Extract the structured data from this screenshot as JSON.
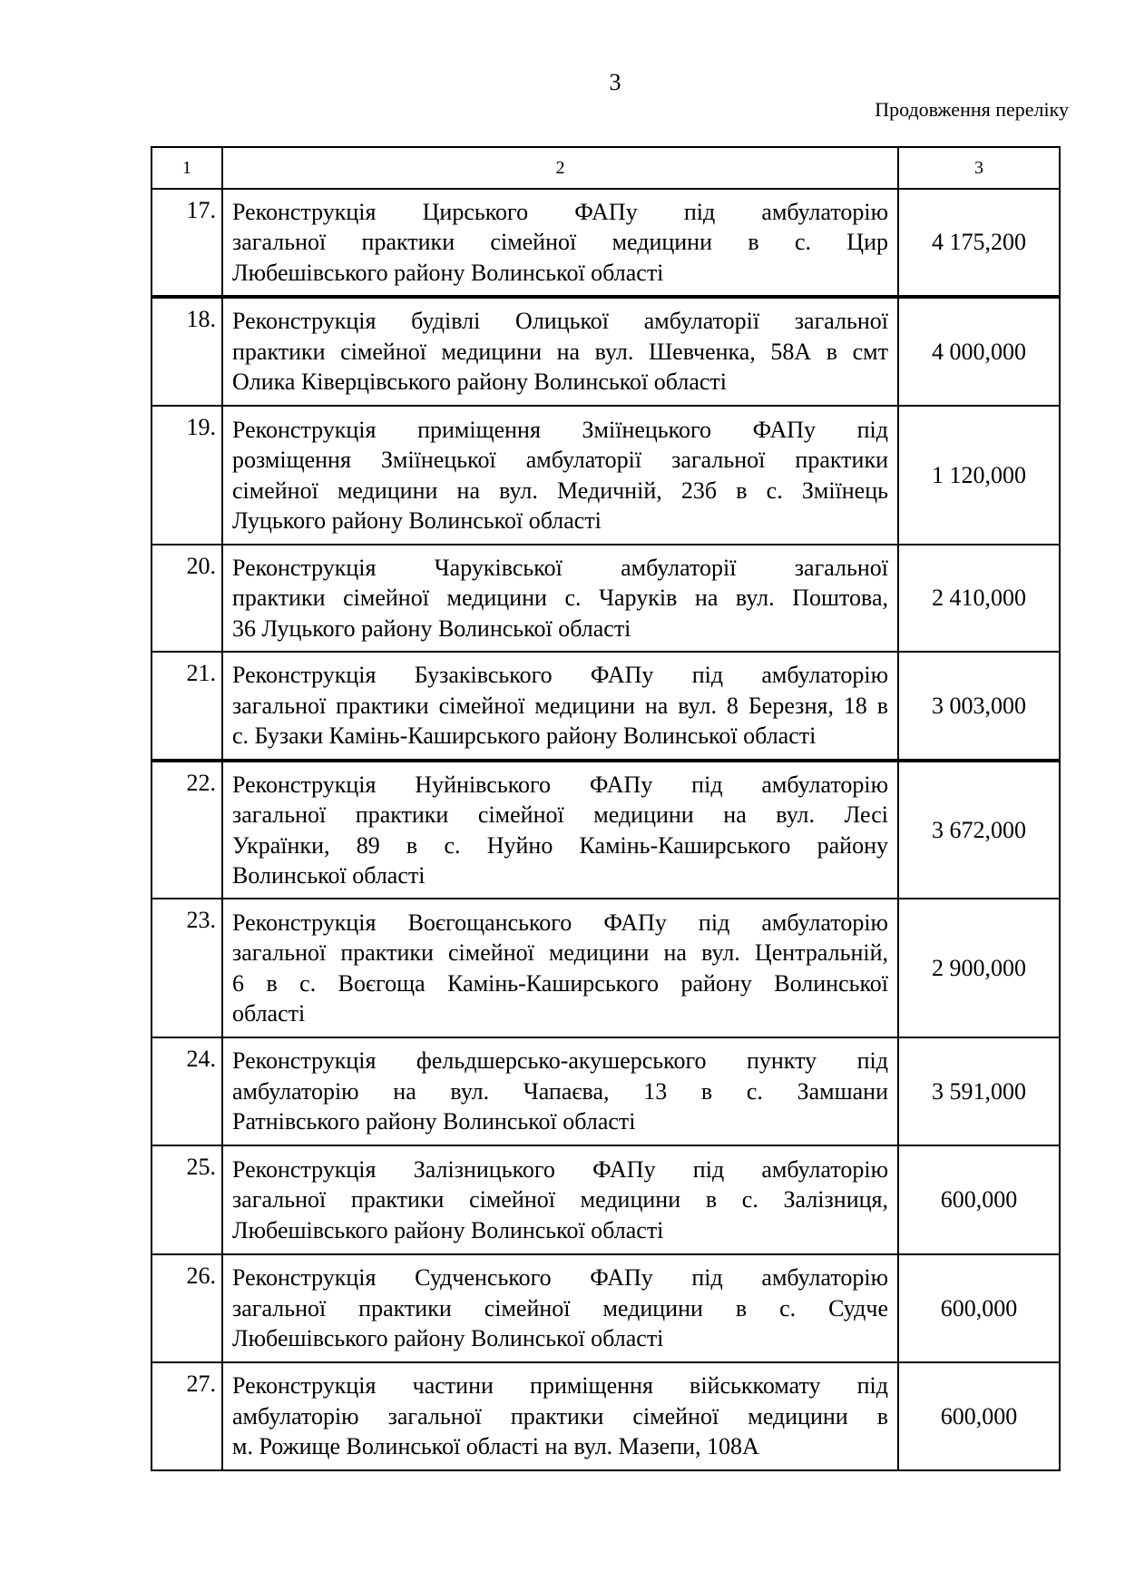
{
  "page_number": "3",
  "continuation": "Продовження переліку",
  "header": [
    "1",
    "2",
    "3"
  ],
  "rows": [
    {
      "num": "17.",
      "lines": [
        "Реконструкція Цирського ФАПу під амбулаторію",
        "загальної практики сімейної медицини в с. Цир",
        "Любешівського району Волинської області"
      ],
      "amount": "4 175,200"
    },
    {
      "num": "18.",
      "lines": [
        "Реконструкція будівлі Олицької амбулаторії загальної",
        "практики сімейної медицини на вул. Шевченка, 58А в смт",
        "Олика Ківерцівського району Волинської області"
      ],
      "amount": "4 000,000"
    },
    {
      "num": "19.",
      "lines": [
        "Реконструкція приміщення Зміїнецького ФАПу під",
        "розміщення Зміїнецької амбулаторії загальної практики",
        "сімейної медицини на вул. Медичній, 23б в с. Змiїнець",
        "Луцького району Волинської області"
      ],
      "amount": "1 120,000"
    },
    {
      "num": "20.",
      "lines": [
        "Реконструкція Чаруківської амбулаторії загальної",
        "практики сімейної медицини с. Чаруків на вул. Поштова,",
        "36 Луцького району Волинської області"
      ],
      "amount": "2 410,000"
    },
    {
      "num": "21.",
      "lines": [
        "Реконструкція Бузаківського ФАПу під амбулаторію",
        "загальної практики сімейної медицини на вул. 8 Березня, 18 в",
        "с. Бузаки Камінь-Каширського району Волинської області"
      ],
      "amount": "3 003,000"
    },
    {
      "num": "22.",
      "lines": [
        "Реконструкція Нуйнівського ФАПу під амбулаторію",
        "загальної практики сімейної медицини на вул. Лесі",
        "Українки, 89 в с. Нуйно Камінь-Каширського району",
        "Волинської області"
      ],
      "amount": "3 672,000"
    },
    {
      "num": "23.",
      "lines": [
        "Реконструкція Воєгощанського ФАПу під амбулаторію",
        "загальної практики сімейної медицини на вул. Центральній,",
        "6 в с. Воєгоща Камінь-Каширського району Волинської",
        "області"
      ],
      "amount": "2 900,000"
    },
    {
      "num": "24.",
      "lines": [
        "Реконструкція фельдшерсько-акушерського пункту під",
        "амбулаторію на вул. Чапаєва, 13 в с. Замшани",
        "Ратнівського району Волинської області"
      ],
      "amount": "3 591,000"
    },
    {
      "num": "25.",
      "lines": [
        "Реконструкція Залізницького ФАПу під амбулаторію",
        "загальної практики сімейної медицини в с. Залізниця,",
        "Любешівського району Волинської області"
      ],
      "amount": "600,000"
    },
    {
      "num": "26.",
      "lines": [
        "Реконструкція Судченського ФАПу під амбулаторію",
        "загальної практики сімейної медицини в с. Судче",
        "Любешівського району Волинської області"
      ],
      "amount": "600,000"
    },
    {
      "num": "27.",
      "lines": [
        "Реконструкція частини приміщення військкомату під",
        "амбулаторію загальної практики сімейної медицини в",
        "м. Рожище Волинської області на вул. Мазепи, 108А"
      ],
      "amount": "600,000"
    }
  ]
}
